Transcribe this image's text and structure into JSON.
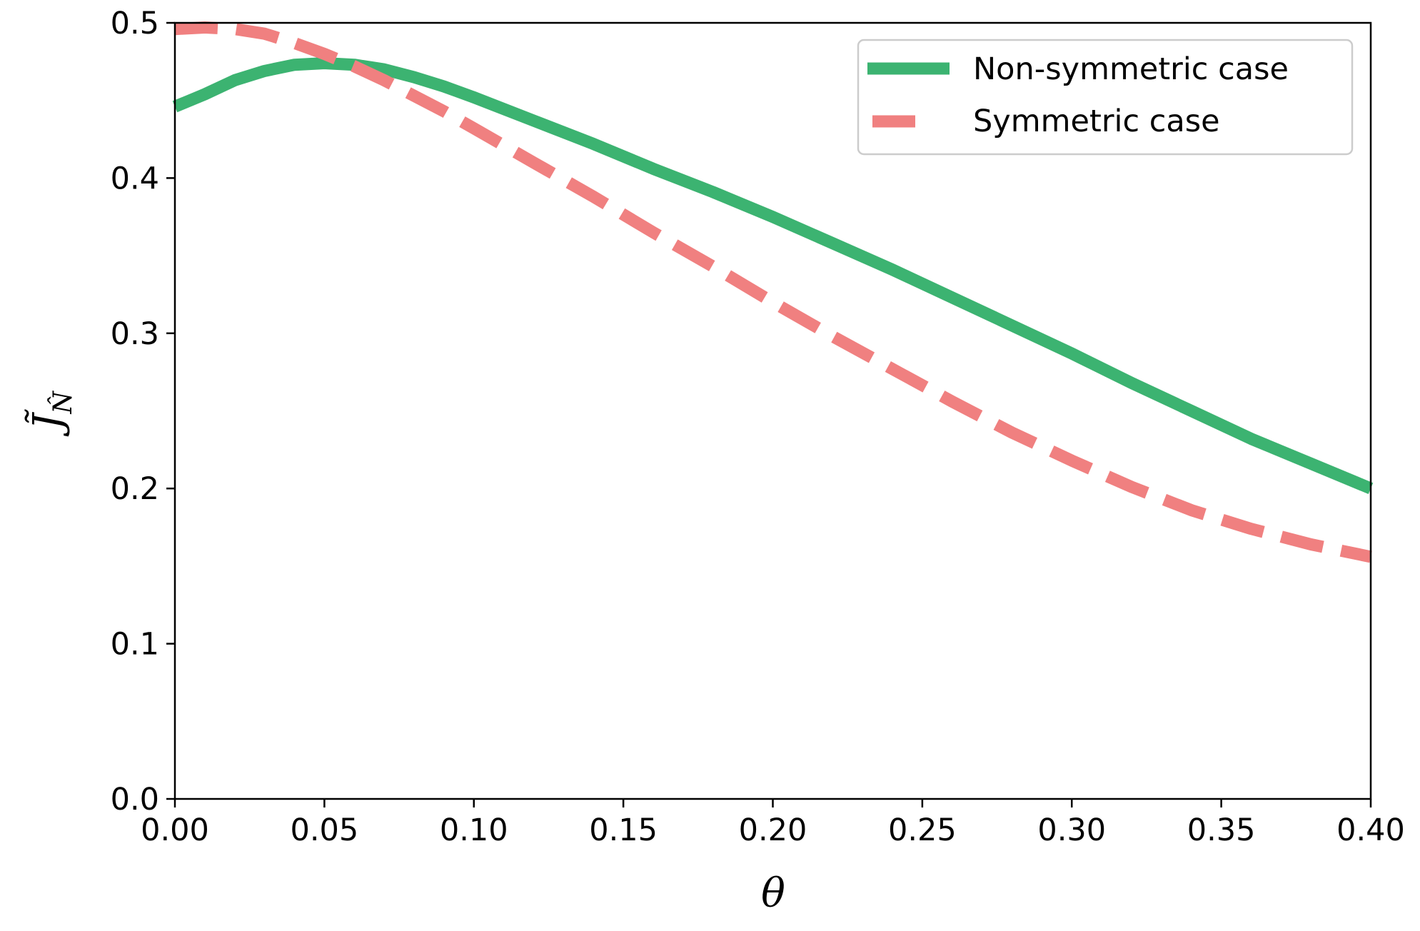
{
  "chart_data": {
    "type": "line",
    "title": "",
    "xlabel": "θ",
    "ylabel": "J̃",
    "ylabel_subscript": "N̂",
    "xlim": [
      0.0,
      0.4
    ],
    "ylim": [
      0.0,
      0.5
    ],
    "grid": false,
    "legend_position": "top-right",
    "x_ticks": [
      0.0,
      0.05,
      0.1,
      0.15,
      0.2,
      0.25,
      0.3,
      0.35,
      0.4
    ],
    "x_tick_labels": [
      "0.00",
      "0.05",
      "0.10",
      "0.15",
      "0.20",
      "0.25",
      "0.30",
      "0.35",
      "0.40"
    ],
    "y_ticks": [
      0.0,
      0.1,
      0.2,
      0.3,
      0.4,
      0.5
    ],
    "y_tick_labels": [
      "0.0",
      "0.1",
      "0.2",
      "0.3",
      "0.4",
      "0.5"
    ],
    "series": [
      {
        "name": "Non-symmetric case",
        "color": "#3cb371",
        "style": "solid",
        "x": [
          0.0,
          0.01,
          0.02,
          0.03,
          0.04,
          0.05,
          0.06,
          0.07,
          0.08,
          0.09,
          0.1,
          0.12,
          0.14,
          0.16,
          0.18,
          0.2,
          0.22,
          0.24,
          0.26,
          0.28,
          0.3,
          0.32,
          0.34,
          0.36,
          0.38,
          0.4
        ],
        "y": [
          0.446,
          0.454,
          0.463,
          0.469,
          0.473,
          0.474,
          0.473,
          0.47,
          0.465,
          0.459,
          0.452,
          0.437,
          0.422,
          0.406,
          0.391,
          0.375,
          0.358,
          0.341,
          0.323,
          0.305,
          0.287,
          0.268,
          0.25,
          0.232,
          0.216,
          0.2
        ]
      },
      {
        "name": "Symmetric case",
        "color": "#f08080",
        "style": "dashed",
        "x": [
          0.0,
          0.01,
          0.02,
          0.03,
          0.04,
          0.05,
          0.06,
          0.07,
          0.08,
          0.09,
          0.1,
          0.12,
          0.14,
          0.16,
          0.18,
          0.2,
          0.22,
          0.24,
          0.26,
          0.28,
          0.3,
          0.32,
          0.34,
          0.36,
          0.38,
          0.4
        ],
        "y": [
          0.496,
          0.497,
          0.496,
          0.493,
          0.487,
          0.48,
          0.472,
          0.463,
          0.453,
          0.443,
          0.432,
          0.41,
          0.388,
          0.365,
          0.343,
          0.32,
          0.298,
          0.277,
          0.256,
          0.236,
          0.218,
          0.201,
          0.186,
          0.174,
          0.164,
          0.156
        ]
      }
    ]
  }
}
